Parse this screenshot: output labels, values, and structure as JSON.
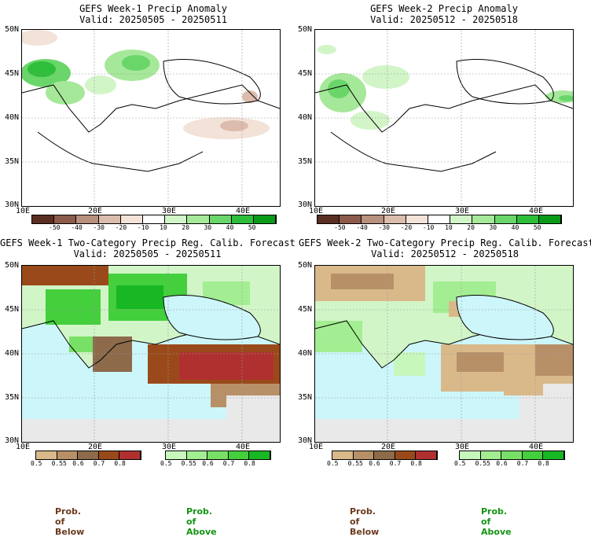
{
  "panels": [
    {
      "title_line1": "GEFS Week-1 Precip Anomaly",
      "title_line2": "Valid: 20250505 - 20250511"
    },
    {
      "title_line1": "GEFS Week-2 Precip Anomaly",
      "title_line2": "Valid: 20250512 - 20250518"
    },
    {
      "title_line1": "GEFS Week-1 Two-Category Precip Reg. Calib. Forecast",
      "title_line2": "Valid: 20250505 - 20250511"
    },
    {
      "title_line1": "GEFS Week-2 Two-Category Precip Reg. Calib. Forecast",
      "title_line2": "Valid: 20250512 - 20250518"
    }
  ],
  "axes": {
    "lat_labels": [
      "50N",
      "45N",
      "40N",
      "35N",
      "30N"
    ],
    "lon_labels": [
      "10E",
      "20E",
      "30E",
      "40E"
    ]
  },
  "anomaly_colorbar": {
    "labels": [
      "-50",
      "-40",
      "-30",
      "-20",
      "-10",
      "10",
      "20",
      "30",
      "40",
      "50"
    ],
    "colors": [
      "#5a2e22",
      "#8c5a4a",
      "#b8907e",
      "#dcbcac",
      "#f3e2d8",
      "#ffffff",
      "#d2f5c8",
      "#a6e89a",
      "#6ad66a",
      "#2fbe3a",
      "#0a9a1a"
    ]
  },
  "prob_below_colorbar": {
    "labels": [
      "0.5",
      "0.55",
      "0.6",
      "0.7",
      "0.8"
    ],
    "colors": [
      "#d9b98a",
      "#b89068",
      "#8c6a4a",
      "#9a4a1a",
      "#b03030"
    ]
  },
  "prob_above_colorbar": {
    "labels": [
      "0.5",
      "0.55",
      "0.6",
      "0.7",
      "0.8"
    ],
    "colors": [
      "#c8f7bc",
      "#a3ee92",
      "#78e066",
      "#44cf3c",
      "#18b824"
    ]
  },
  "footers": {
    "below": "Prob. of Below",
    "above": "Prob. of Above"
  }
}
